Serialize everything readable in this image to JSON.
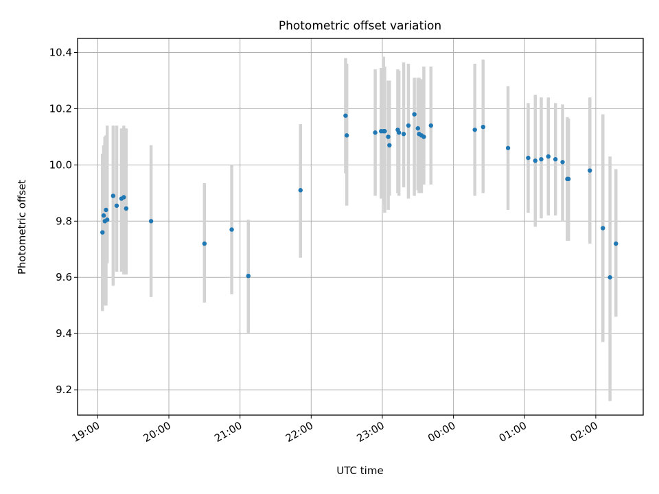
{
  "chart_data": {
    "type": "scatter",
    "title": "Photometric offset variation",
    "xlabel": "UTC time",
    "ylabel": "Photometric offset",
    "x_ticks": [
      "19:00",
      "20:00",
      "21:00",
      "22:00",
      "23:00",
      "00:00",
      "01:00",
      "02:00"
    ],
    "y_ticks": [
      "9.2",
      "9.4",
      "9.6",
      "9.8",
      "10.0",
      "10.2",
      "10.4"
    ],
    "xlim": [
      "18:43",
      "02:40"
    ],
    "ylim": [
      9.11,
      10.45
    ],
    "grid": true,
    "point_color": "#1f77b4",
    "errorbar_color": "#d3d3d3",
    "x": [
      "19:04",
      "19:05",
      "19:06",
      "19:07",
      "19:08",
      "19:13",
      "19:16",
      "19:20",
      "19:22",
      "19:24",
      "19:45",
      "20:30",
      "20:53",
      "21:07",
      "21:51",
      "22:29",
      "22:30",
      "22:54",
      "22:59",
      "23:01",
      "23:02",
      "23:05",
      "23:06",
      "23:13",
      "23:14",
      "23:18",
      "23:22",
      "23:27",
      "23:30",
      "23:31",
      "23:33",
      "23:35",
      "23:41",
      "00:18",
      "00:25",
      "00:46",
      "01:03",
      "01:09",
      "01:14",
      "01:20",
      "01:26",
      "01:32",
      "01:36",
      "01:37",
      "01:55",
      "02:06",
      "02:12",
      "02:17"
    ],
    "y": [
      9.76,
      9.82,
      9.8,
      9.84,
      9.805,
      9.89,
      9.855,
      9.88,
      9.885,
      9.845,
      9.8,
      9.72,
      9.77,
      9.605,
      9.91,
      10.175,
      10.105,
      10.115,
      10.12,
      10.12,
      10.12,
      10.1,
      10.07,
      10.125,
      10.115,
      10.11,
      10.14,
      10.18,
      10.13,
      10.11,
      10.105,
      10.1,
      10.14,
      10.125,
      10.135,
      10.06,
      10.025,
      10.015,
      10.02,
      10.03,
      10.02,
      10.01,
      9.95,
      9.95,
      9.98,
      9.775,
      9.6,
      9.72
    ],
    "yerr_low": [
      9.48,
      9.5,
      9.5,
      9.5,
      9.65,
      9.57,
      9.62,
      9.62,
      9.61,
      9.61,
      9.53,
      9.51,
      9.54,
      9.4,
      9.67,
      9.97,
      9.855,
      9.89,
      9.88,
      9.86,
      9.83,
      9.84,
      9.89,
      9.9,
      9.89,
      9.92,
      9.88,
      9.89,
      9.91,
      9.9,
      9.9,
      9.93,
      9.93,
      9.89,
      9.9,
      9.84,
      9.83,
      9.78,
      9.81,
      9.82,
      9.82,
      9.8,
      9.73,
      9.73,
      9.72,
      9.37,
      9.16,
      9.46
    ],
    "yerr_high": [
      10.04,
      10.07,
      10.1,
      10.105,
      10.14,
      10.14,
      10.14,
      10.13,
      10.14,
      10.13,
      10.07,
      9.935,
      10.0,
      9.805,
      10.145,
      10.38,
      10.36,
      10.34,
      10.345,
      10.385,
      10.35,
      10.3,
      10.3,
      10.34,
      10.335,
      10.365,
      10.36,
      10.31,
      10.31,
      10.31,
      10.305,
      10.35,
      10.35,
      10.36,
      10.375,
      10.28,
      10.22,
      10.25,
      10.24,
      10.24,
      10.22,
      10.215,
      10.17,
      10.165,
      10.24,
      10.18,
      10.03,
      9.985
    ]
  }
}
